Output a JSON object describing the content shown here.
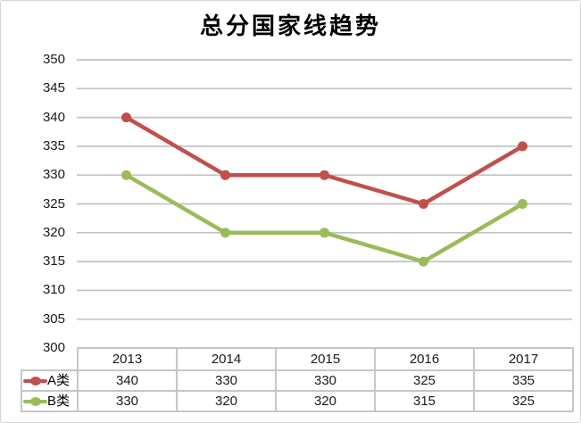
{
  "title": "总分国家线趋势",
  "colors": {
    "series_a": "#C0504D",
    "series_b": "#9BBB59",
    "gridline": "#C3C3C3",
    "table_border": "#C6C6C6",
    "text": "#1A1A1A",
    "chart_border": "#D6D6D6",
    "background": "#FFFFFF"
  },
  "chart_data": {
    "type": "line",
    "title": "总分国家线趋势",
    "xlabel": "",
    "ylabel": "",
    "categories": [
      "2013",
      "2014",
      "2015",
      "2016",
      "2017"
    ],
    "series": [
      {
        "name": "A类",
        "color": "#C0504D",
        "values": [
          340,
          330,
          330,
          325,
          335
        ]
      },
      {
        "name": "B类",
        "color": "#9BBB59",
        "values": [
          330,
          320,
          320,
          315,
          325
        ]
      }
    ],
    "ylim": [
      300,
      350
    ],
    "y_step": 5,
    "y_ticks": [
      350,
      345,
      340,
      335,
      330,
      325,
      320,
      315,
      310,
      305,
      300
    ],
    "grid": "horizontal",
    "legend_position": "data-table-left",
    "data_table_shown": true,
    "marker": "circle"
  }
}
